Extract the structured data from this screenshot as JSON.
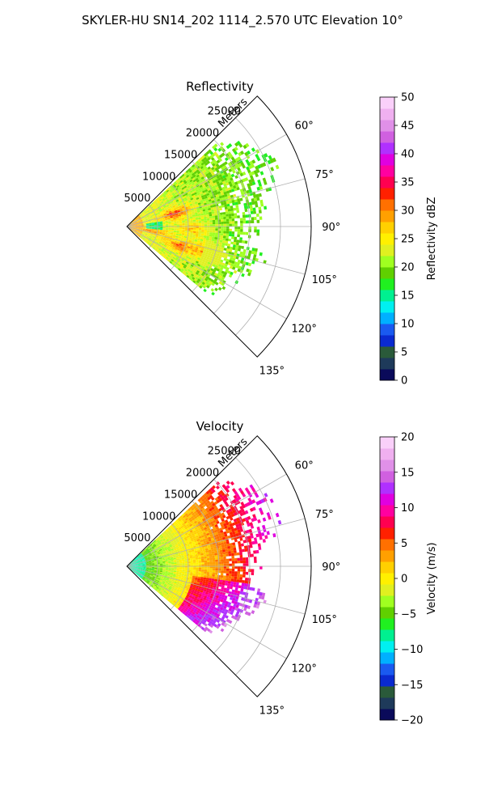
{
  "figure": {
    "suptitle": "SKYLER-HU  SN14_202  1114_2.570 UTC Elevation 10°"
  },
  "chart_data": [
    {
      "type": "heatmap",
      "projection": "polar-sector",
      "title": "Reflectivity",
      "radial_label": "Meters",
      "radial_ticks": [
        5000,
        10000,
        15000,
        20000,
        25000
      ],
      "radial_tick_labels": [
        "5000",
        "10000",
        "15000",
        "20000",
        "25000"
      ],
      "rlim": [
        0,
        30000
      ],
      "azimuth_range_deg": [
        45,
        135
      ],
      "azimuth_ticks_deg": [
        60,
        75,
        90,
        105,
        120,
        135
      ],
      "azimuth_tick_labels": [
        "60°",
        "75°",
        "90°",
        "105°",
        "120°",
        "135°"
      ],
      "grid": true,
      "colorbar": {
        "label": "Reflectivity dBZ",
        "range": [
          0,
          50
        ],
        "ticks": [
          0,
          5,
          10,
          15,
          20,
          25,
          30,
          35,
          40,
          45,
          50
        ],
        "tick_labels": [
          "0",
          "5",
          "10",
          "15",
          "20",
          "25",
          "30",
          "35",
          "40",
          "45",
          "50"
        ],
        "colors": [
          "#0a0a5a",
          "#1e3a5a",
          "#2a5a3a",
          "#0a2ad0",
          "#1a5af0",
          "#00b0ff",
          "#00f0f0",
          "#00f090",
          "#20f020",
          "#60d000",
          "#a0ff20",
          "#e0f020",
          "#fff000",
          "#ffd000",
          "#ffa000",
          "#ff7000",
          "#ff2000",
          "#ff0050",
          "#ff00a0",
          "#e000e0",
          "#b030ff",
          "#d060e0",
          "#e090e8",
          "#f0b0f0",
          "#fad0fa"
        ]
      },
      "echo_extent_m": [
        0,
        27000
      ],
      "echo_azimuth_deg": [
        47,
        130
      ],
      "values_description": "dBZ"
    },
    {
      "type": "heatmap",
      "projection": "polar-sector",
      "title": "Velocity",
      "radial_label": "Meters",
      "radial_ticks": [
        5000,
        10000,
        15000,
        20000,
        25000
      ],
      "radial_tick_labels": [
        "5000",
        "10000",
        "15000",
        "20000",
        "25000"
      ],
      "rlim": [
        0,
        30000
      ],
      "azimuth_range_deg": [
        45,
        135
      ],
      "azimuth_ticks_deg": [
        60,
        75,
        90,
        105,
        120,
        135
      ],
      "azimuth_tick_labels": [
        "60°",
        "75°",
        "90°",
        "105°",
        "120°",
        "135°"
      ],
      "grid": true,
      "colorbar": {
        "label": "Velocity (m/s)",
        "range": [
          -20,
          20
        ],
        "ticks": [
          -20,
          -15,
          -10,
          -5,
          0,
          5,
          10,
          15,
          20
        ],
        "tick_labels": [
          "−20",
          "−15",
          "−10",
          "−5",
          "0",
          "5",
          "10",
          "15",
          "20"
        ],
        "colors": [
          "#0a0a5a",
          "#1e3a5a",
          "#2a5a3a",
          "#0a2ad0",
          "#1a5af0",
          "#00b0ff",
          "#00f0f0",
          "#00f090",
          "#20f020",
          "#60d000",
          "#a0ff20",
          "#e0f020",
          "#fff000",
          "#ffd000",
          "#ffa000",
          "#ff7000",
          "#ff2000",
          "#ff0050",
          "#ff00a0",
          "#e000e0",
          "#b030ff",
          "#d060e0",
          "#e090e8",
          "#f0b0f0",
          "#fad0fa"
        ]
      },
      "echo_extent_m": [
        0,
        27000
      ],
      "echo_azimuth_deg": [
        47,
        130
      ],
      "values_description": "m/s"
    }
  ]
}
